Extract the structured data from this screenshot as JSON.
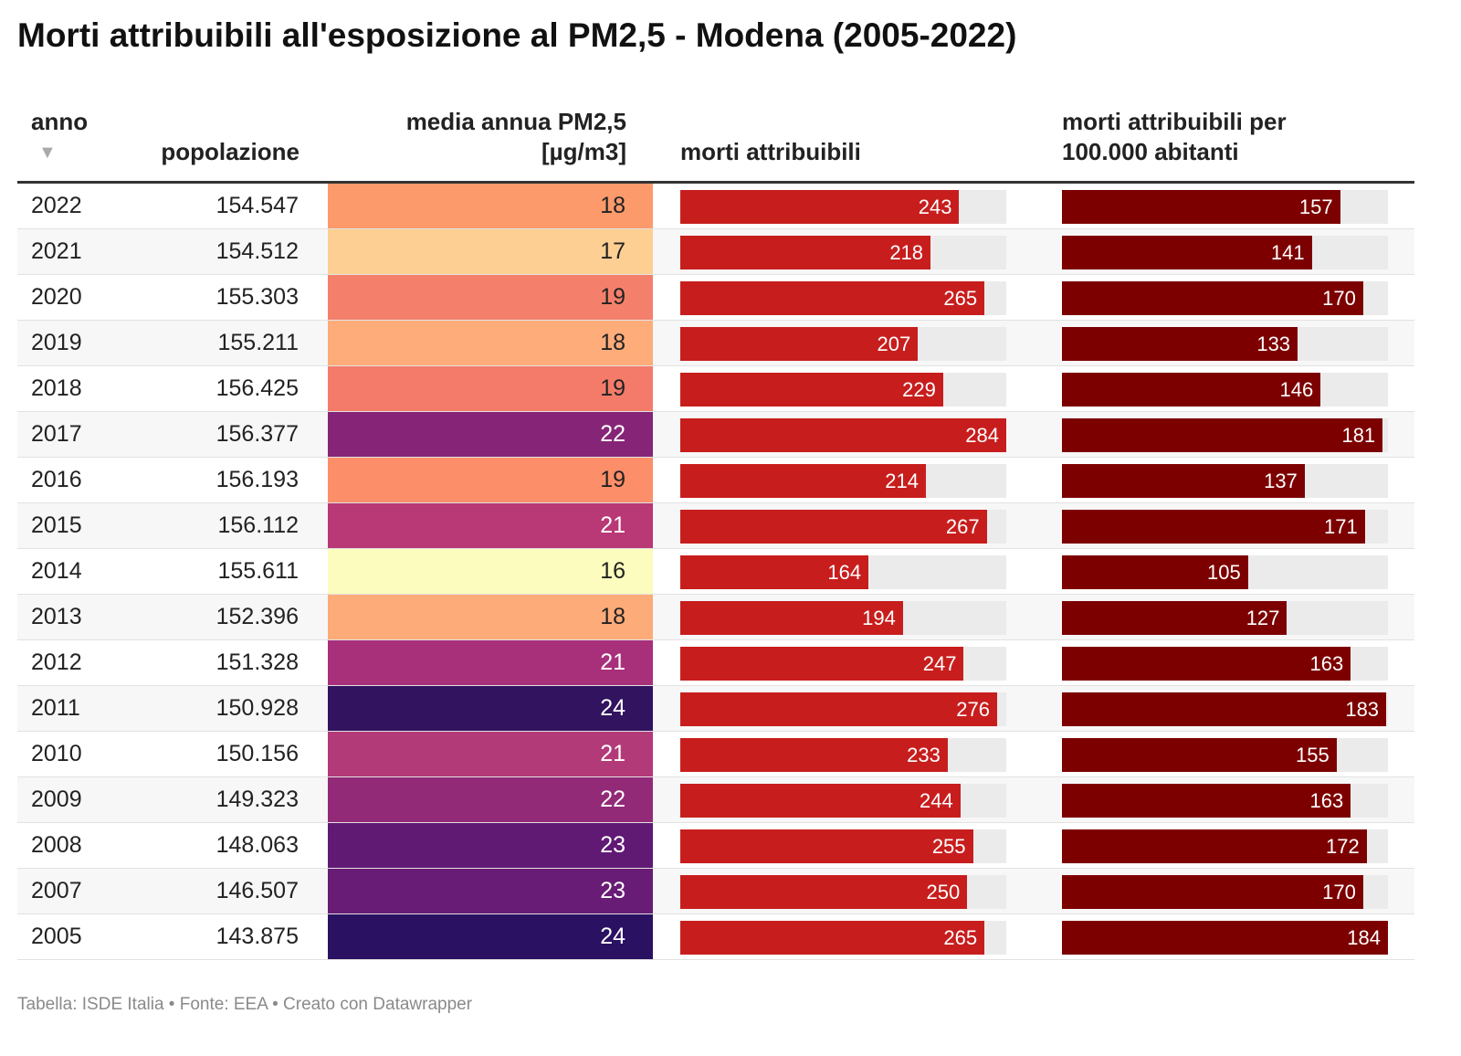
{
  "title": "Morti attribuibili all'esposizione al PM2,5 - Modena (2005-2022)",
  "table": {
    "columns": [
      "anno",
      "popolazione",
      "media annua PM2,5 [µg/m3]",
      "morti attribuibili",
      "morti attribuibili per 100.000 abitanti"
    ],
    "rows": [
      [
        "2022",
        "154.547",
        18,
        243,
        157
      ],
      [
        "2021",
        "154.512",
        17,
        218,
        141
      ],
      [
        "2020",
        "155.303",
        19,
        265,
        170
      ],
      [
        "2019",
        "155.211",
        18,
        207,
        133
      ],
      [
        "2018",
        "156.425",
        19,
        229,
        146
      ],
      [
        "2017",
        "156.377",
        22,
        284,
        181
      ],
      [
        "2016",
        "156.193",
        19,
        214,
        137
      ],
      [
        "2015",
        "156.112",
        21,
        267,
        171
      ],
      [
        "2014",
        "155.611",
        16,
        164,
        105
      ],
      [
        "2013",
        "152.396",
        18,
        194,
        127
      ],
      [
        "2012",
        "151.328",
        21,
        247,
        163
      ],
      [
        "2011",
        "150.928",
        24,
        276,
        183
      ],
      [
        "2010",
        "150.156",
        21,
        233,
        155
      ],
      [
        "2009",
        "149.323",
        22,
        244,
        163
      ],
      [
        "2008",
        "148.063",
        23,
        255,
        172
      ],
      [
        "2007",
        "146.507",
        23,
        250,
        170
      ],
      [
        "2005",
        "143.875",
        24,
        265,
        184
      ]
    ],
    "pm_colors": [
      "#fc9a6c",
      "#fdcf92",
      "#f4806b",
      "#fdac7a",
      "#f47b6a",
      "#862577",
      "#fc8e6a",
      "#b93876",
      "#fbfcbd",
      "#fdab78",
      "#a82f7a",
      "#321360",
      "#b33a78",
      "#922a78",
      "#601a74",
      "#681c75",
      "#2b1162"
    ],
    "bar_colors": [
      "#c71e1d",
      "#7d0000"
    ],
    "track_color": "#ebebeb"
  },
  "footer": "Tabella: ISDE Italia • Fonte: EEA • Creato con Datawrapper"
}
